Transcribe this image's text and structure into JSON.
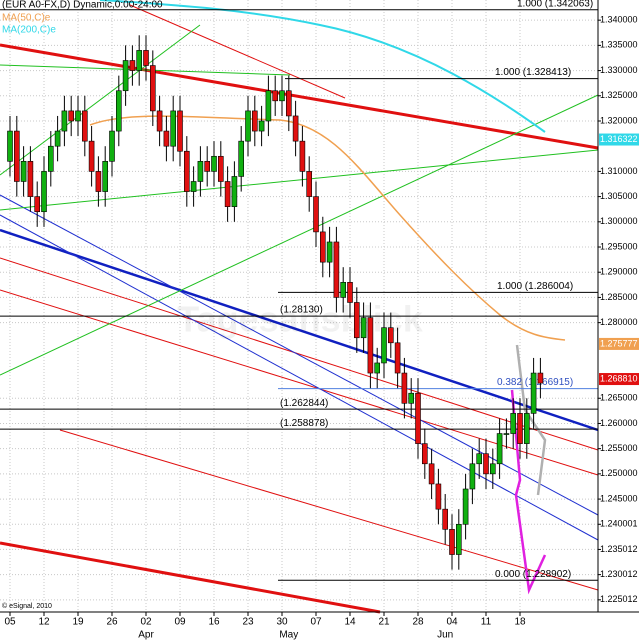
{
  "chart_data": {
    "type": "candlestick",
    "title": "(EUR A0-FX,D) Dynamic,0:00-24:00",
    "legend": [
      {
        "name": "MA(50,C)e",
        "color": "#f0a050"
      },
      {
        "name": "MA(200,C)e",
        "color": "#30d8e8"
      }
    ],
    "watermark": "Tagesansblick",
    "copyright": "© eSignal, 2010",
    "up_color": "#10b010",
    "down_color": "#e01010",
    "grid": true,
    "categories": [
      "05",
      null,
      null,
      null,
      null,
      "12",
      null,
      null,
      null,
      null,
      "19",
      null,
      null,
      null,
      null,
      "26",
      null,
      null,
      null,
      null,
      "02",
      null,
      null,
      null,
      null,
      "09",
      null,
      null,
      null,
      null,
      "16",
      null,
      null,
      null,
      null,
      "23",
      null,
      null,
      null,
      null,
      "30",
      null,
      null,
      null,
      null,
      "07",
      null,
      null,
      null,
      null,
      "14",
      null,
      null,
      null,
      null,
      "21",
      null,
      null,
      null,
      null,
      "28",
      null,
      null,
      null,
      null,
      "04",
      null,
      null,
      null,
      null,
      "11",
      null,
      null,
      null,
      null,
      "18",
      null,
      null,
      null
    ],
    "months": [
      {
        "label": "Apr",
        "index": 20
      },
      {
        "label": "May",
        "index": 41
      },
      {
        "label": "Jun",
        "index": 64
      }
    ],
    "open": [
      1.312,
      1.318,
      1.308,
      1.312,
      1.305,
      1.302,
      1.31,
      1.315,
      1.318,
      1.322,
      1.32,
      1.322,
      1.316,
      1.31,
      1.306,
      1.312,
      1.318,
      1.326,
      1.332,
      1.33,
      1.334,
      1.331,
      1.322,
      1.318,
      1.315,
      1.322,
      1.314,
      1.306,
      1.308,
      1.312,
      1.31,
      1.313,
      1.308,
      1.303,
      1.309,
      1.316,
      1.322,
      1.318,
      1.32,
      1.326,
      1.324,
      1.326,
      1.321,
      1.316,
      1.31,
      1.305,
      1.298,
      1.292,
      1.296,
      1.285,
      1.288,
      1.284,
      1.277,
      1.281,
      1.27,
      1.272,
      1.279,
      1.276,
      1.27,
      1.264,
      1.266,
      1.256,
      1.252,
      1.248,
      1.243,
      1.239,
      1.234,
      1.24,
      1.247,
      1.252,
      1.254,
      1.25,
      1.252,
      1.258,
      1.258,
      1.262,
      1.256,
      1.262,
      1.27
    ],
    "high": [
      1.321,
      1.321,
      1.315,
      1.315,
      1.308,
      1.313,
      1.318,
      1.321,
      1.325,
      1.325,
      1.325,
      1.325,
      1.319,
      1.313,
      1.315,
      1.321,
      1.329,
      1.335,
      1.335,
      1.337,
      1.337,
      1.334,
      1.325,
      1.321,
      1.325,
      1.325,
      1.317,
      1.311,
      1.315,
      1.315,
      1.316,
      1.316,
      1.311,
      1.312,
      1.319,
      1.325,
      1.325,
      1.323,
      1.329,
      1.329,
      1.329,
      1.329,
      1.324,
      1.319,
      1.313,
      1.308,
      1.301,
      1.299,
      1.299,
      1.291,
      1.291,
      1.287,
      1.284,
      1.284,
      1.275,
      1.282,
      1.282,
      1.279,
      1.273,
      1.269,
      1.269,
      1.259,
      1.255,
      1.251,
      1.246,
      1.242,
      1.243,
      1.25,
      1.255,
      1.257,
      1.257,
      1.255,
      1.261,
      1.261,
      1.265,
      1.265,
      1.265,
      1.273,
      1.273
    ],
    "low": [
      1.309,
      1.305,
      1.305,
      1.302,
      1.299,
      1.299,
      1.307,
      1.312,
      1.315,
      1.317,
      1.317,
      1.313,
      1.307,
      1.303,
      1.303,
      1.309,
      1.315,
      1.323,
      1.327,
      1.327,
      1.328,
      1.319,
      1.315,
      1.312,
      1.312,
      1.311,
      1.303,
      1.303,
      1.305,
      1.307,
      1.307,
      1.305,
      1.3,
      1.3,
      1.306,
      1.313,
      1.315,
      1.315,
      1.317,
      1.321,
      1.321,
      1.318,
      1.313,
      1.307,
      1.302,
      1.295,
      1.289,
      1.289,
      1.282,
      1.282,
      1.281,
      1.274,
      1.274,
      1.267,
      1.267,
      1.269,
      1.273,
      1.267,
      1.261,
      1.261,
      1.253,
      1.249,
      1.245,
      1.24,
      1.236,
      1.231,
      1.231,
      1.237,
      1.244,
      1.249,
      1.247,
      1.247,
      1.249,
      1.255,
      1.255,
      1.253,
      1.253,
      1.259,
      1.265
    ],
    "close": [
      1.318,
      1.308,
      1.312,
      1.305,
      1.302,
      1.31,
      1.315,
      1.318,
      1.322,
      1.32,
      1.322,
      1.316,
      1.31,
      1.306,
      1.312,
      1.318,
      1.326,
      1.332,
      1.33,
      1.334,
      1.331,
      1.322,
      1.318,
      1.315,
      1.322,
      1.314,
      1.306,
      1.308,
      1.312,
      1.31,
      1.313,
      1.308,
      1.303,
      1.309,
      1.316,
      1.322,
      1.318,
      1.32,
      1.326,
      1.324,
      1.326,
      1.321,
      1.316,
      1.31,
      1.305,
      1.298,
      1.292,
      1.296,
      1.285,
      1.288,
      1.284,
      1.277,
      1.281,
      1.27,
      1.272,
      1.279,
      1.276,
      1.27,
      1.264,
      1.266,
      1.256,
      1.252,
      1.248,
      1.243,
      1.239,
      1.234,
      1.24,
      1.247,
      1.252,
      1.254,
      1.25,
      1.252,
      1.258,
      1.258,
      1.262,
      1.256,
      1.262,
      1.27,
      1.268
    ],
    "ylim": [
      1.2226,
      1.344
    ],
    "yticks": [
      {
        "value": 1.34,
        "label": "1.340000"
      },
      {
        "value": 1.335,
        "label": "1.335000"
      },
      {
        "value": 1.33,
        "label": "1.330000"
      },
      {
        "value": 1.325,
        "label": "1.325000"
      },
      {
        "value": 1.32,
        "label": "1.320000"
      },
      {
        "value": 1.31,
        "label": "1.310000"
      },
      {
        "value": 1.305,
        "label": "1.305000"
      },
      {
        "value": 1.3,
        "label": "1.300000"
      },
      {
        "value": 1.295,
        "label": "1.295000"
      },
      {
        "value": 1.29,
        "label": "1.290000"
      },
      {
        "value": 1.285,
        "label": "1.285000"
      },
      {
        "value": 1.28,
        "label": "1.280000"
      },
      {
        "value": 1.265,
        "label": "1.265000"
      },
      {
        "value": 1.26,
        "label": "1.260000"
      },
      {
        "value": 1.255,
        "label": "1.255000"
      },
      {
        "value": 1.25,
        "label": "1.250000"
      },
      {
        "value": 1.245,
        "label": "1.245000"
      },
      {
        "value": 1.240001,
        "label": "1.240001"
      },
      {
        "value": 1.235012,
        "label": "1.235012"
      },
      {
        "value": 1.230012,
        "label": "1.230012"
      },
      {
        "value": 1.225012,
        "label": "1.225012"
      }
    ],
    "levels": [
      {
        "label": "1.000 (1.342063)",
        "value": 1.342063
      },
      {
        "label": "1.000 (1.328413)",
        "value": 1.328413
      },
      {
        "label": "1.000 (1.286004)",
        "value": 1.286004
      },
      {
        "label": "(1.28130)",
        "value": 1.2813
      },
      {
        "label": "0.382 (1.266915)",
        "value": 1.266915
      },
      {
        "label": "(1.262844)",
        "value": 1.262844
      },
      {
        "label": "(1.258878)",
        "value": 1.258878
      },
      {
        "label": "0.000 (1.228902)",
        "value": 1.228902
      }
    ],
    "price_tags": [
      {
        "label": "1.316322",
        "value": 1.316322,
        "color": "#30d8e8"
      },
      {
        "label": "1.275777",
        "value": 1.275777,
        "color": "#f0a050"
      },
      {
        "label": "1.268810",
        "value": 1.26881,
        "color": "#e01010"
      }
    ]
  }
}
